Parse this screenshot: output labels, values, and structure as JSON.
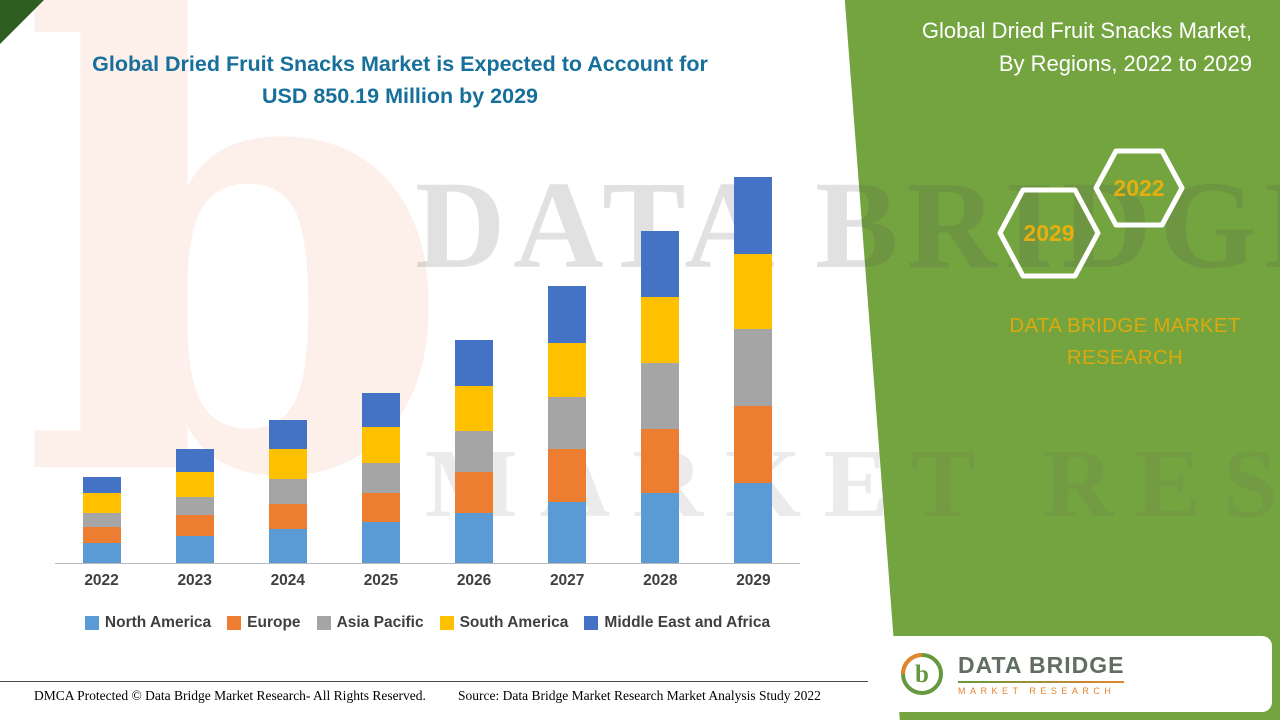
{
  "header": {
    "title_line1": "Global Dried Fruit Snacks Market is Expected to Account for",
    "title_line2": "USD 850.19 Million by 2029"
  },
  "panel": {
    "accent_color": "#74a440",
    "gold_color": "#e6ae0e",
    "title": "Global Dried Fruit Snacks Market, By Regions, 2022 to 2029",
    "hexagons": [
      {
        "label": "2029"
      },
      {
        "label": "2022"
      }
    ],
    "brand_line1": "DATA BRIDGE MARKET",
    "brand_line2": "RESEARCH"
  },
  "logo": {
    "name": "DATA BRIDGE",
    "subtitle": "MARKET RESEARCH",
    "glyph": "b"
  },
  "watermark": {
    "line1": "DATA BRIDGE",
    "line2": "MARKET RESEARCH",
    "glyph": "b"
  },
  "footer": {
    "dmca": "DMCA Protected © Data Bridge Market Research- All Rights Reserved.",
    "source": "Source: Data Bridge Market Research Market Analysis Study 2022"
  },
  "chart_data": {
    "type": "bar",
    "stacked": true,
    "title": "",
    "unit": "USD Million",
    "categories": [
      "2022",
      "2023",
      "2024",
      "2025",
      "2026",
      "2027",
      "2028",
      "2029"
    ],
    "series": [
      {
        "name": "North America",
        "color": "#5B9BD5",
        "values": [
          45,
          60,
          75,
          90,
          110,
          135,
          155,
          175
        ]
      },
      {
        "name": "Europe",
        "color": "#ED7D31",
        "values": [
          35,
          45,
          55,
          65,
          90,
          115,
          140,
          170
        ]
      },
      {
        "name": "Asia Pacific",
        "color": "#A5A5A5",
        "values": [
          30,
          40,
          55,
          65,
          90,
          115,
          145,
          170
        ]
      },
      {
        "name": "South America",
        "color": "#FFC000",
        "values": [
          45,
          55,
          65,
          80,
          100,
          120,
          145,
          165
        ]
      },
      {
        "name": "Middle East and Africa",
        "color": "#4472C4",
        "values": [
          35,
          50,
          65,
          75,
          100,
          125,
          145,
          170.19
        ]
      }
    ],
    "totals": [
      190,
      250,
      315,
      375,
      490,
      610,
      730,
      850.19
    ],
    "xlabel": "",
    "ylabel": "",
    "ylim": [
      0,
      880
    ],
    "grid": false,
    "legend_position": "bottom",
    "y_axis_visible": false
  }
}
